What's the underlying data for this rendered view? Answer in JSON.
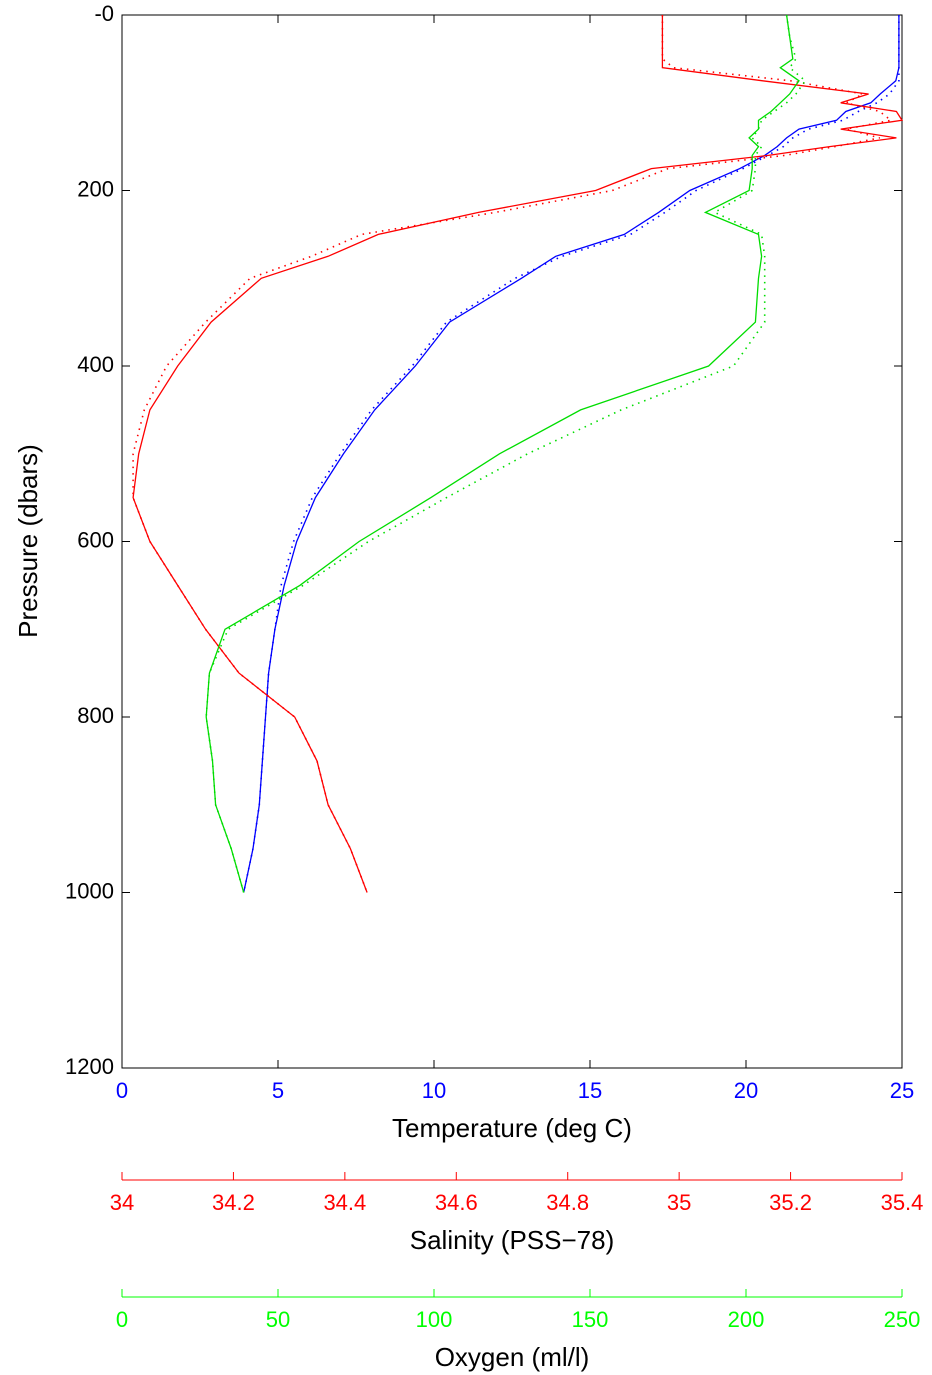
{
  "chart_data": {
    "type": "line",
    "y_label": "Pressure (dbars)",
    "ylim": [
      0,
      1200
    ],
    "y_inverted": true,
    "yticks": [
      {
        "value": 0,
        "label": "-0"
      },
      200,
      400,
      600,
      800,
      1000,
      1200
    ],
    "y": [
      0,
      25,
      50,
      60,
      75,
      90,
      100,
      110,
      120,
      130,
      140,
      150,
      160,
      175,
      200,
      225,
      250,
      275,
      300,
      350,
      400,
      450,
      500,
      550,
      600,
      650,
      700,
      750,
      800,
      850,
      900,
      950,
      1000
    ],
    "x_axes": [
      {
        "label": "Temperature (deg C)",
        "color": "#0000ff",
        "xlim": [
          0,
          25
        ],
        "xticks": [
          0,
          5,
          10,
          15,
          20,
          25
        ],
        "series": [
          {
            "color": "#0000ff",
            "style": "solid",
            "values": [
              24.9,
              24.9,
              24.9,
              24.9,
              24.8,
              24.3,
              24.0,
              23.2,
              22.9,
              21.7,
              21.3,
              21.0,
              20.6,
              19.8,
              18.2,
              17.2,
              16.1,
              13.9,
              12.8,
              10.5,
              9.4,
              8.1,
              7.1,
              6.2,
              5.6,
              5.2,
              4.9,
              4.7,
              4.6,
              4.5,
              4.4,
              4.2,
              3.9
            ]
          },
          {
            "color": "#0000ff",
            "style": "dotted",
            "values": [
              24.9,
              24.9,
              24.9,
              24.9,
              24.9,
              24.6,
              24.2,
              23.6,
              23.1,
              22.0,
              21.5,
              21.2,
              20.7,
              19.9,
              18.4,
              17.4,
              16.3,
              14.1,
              12.6,
              10.4,
              9.3,
              8.0,
              7.0,
              6.1,
              5.5,
              5.1,
              4.9,
              4.7,
              4.6,
              4.5,
              4.4,
              4.2,
              3.9
            ]
          }
        ]
      },
      {
        "label": "Salinity (PSS−78)",
        "color": "#ff0000",
        "xlim": [
          34,
          35.4
        ],
        "xticks": [
          34,
          34.2,
          34.4,
          34.6,
          34.8,
          35,
          35.2,
          35.4
        ],
        "series": [
          {
            "color": "#ff0000",
            "style": "solid",
            "values": [
              34.97,
              34.97,
              34.97,
              34.97,
              35.15,
              35.34,
              35.29,
              35.39,
              35.4,
              35.29,
              35.39,
              35.27,
              35.16,
              34.95,
              34.85,
              34.64,
              34.46,
              34.37,
              34.25,
              34.16,
              34.1,
              34.05,
              34.03,
              34.02,
              34.05,
              34.1,
              34.15,
              34.21,
              34.31,
              34.35,
              34.37,
              34.41,
              34.44
            ]
          },
          {
            "color": "#ff0000",
            "style": "dotted",
            "values": [
              34.97,
              34.97,
              34.97,
              34.99,
              35.2,
              35.33,
              35.3,
              35.36,
              35.38,
              35.3,
              35.36,
              35.28,
              35.19,
              34.98,
              34.88,
              34.67,
              34.43,
              34.34,
              34.23,
              34.15,
              34.08,
              34.04,
              34.02,
              34.02,
              34.05,
              34.1,
              34.15,
              34.21,
              34.31,
              34.35,
              34.37,
              34.41,
              34.44
            ]
          }
        ]
      },
      {
        "label": "Oxygen (ml/l)",
        "color": "#00ff00",
        "xlim": [
          0,
          250
        ],
        "xticks": [
          0,
          50,
          100,
          150,
          200,
          250
        ],
        "series": [
          {
            "color": "#00dd00",
            "style": "solid",
            "values": [
              213,
              214,
              215,
              211,
              217,
              214,
              211,
              208,
              204,
              204,
              201,
              204,
              202,
              202,
              201,
              187,
              204,
              205,
              204,
              203,
              188,
              147,
              121,
              99,
              76,
              57,
              33,
              28,
              27,
              29,
              30,
              35,
              39
            ]
          },
          {
            "color": "#00dd00",
            "style": "dotted",
            "values": [
              213,
              214,
              216,
              214,
              219,
              216,
              213,
              209,
              205,
              204,
              202,
              205,
              203,
              203,
              202,
              190,
              205,
              206,
              206,
              206,
              196,
              160,
              130,
              104,
              79,
              58,
              34,
              28,
              27,
              29,
              30,
              35,
              39
            ]
          }
        ]
      }
    ]
  }
}
